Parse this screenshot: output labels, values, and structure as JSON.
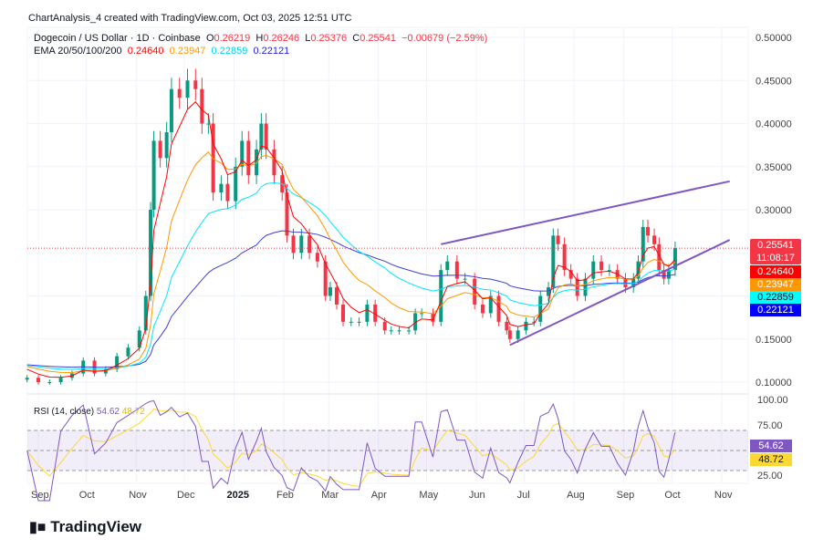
{
  "header": {
    "created": "ChartAnalysis_4 created with TradingView.com, Oct 03, 2025 12:51 UTC",
    "symbol": "Dogecoin / US Dollar · 1D · Coinbase",
    "o_label": "O",
    "o": "0.26219",
    "h_label": "H",
    "h": "0.26246",
    "l_label": "L",
    "l": "0.25376",
    "c_label": "C",
    "c": "0.25541",
    "change": "−0.00679 (−2.59%)",
    "ema_label": "EMA 20/50/100/200",
    "ema20": "0.24640",
    "ema50": "0.23947",
    "ema100": "0.22859",
    "ema200": "0.22121"
  },
  "price_labels": {
    "last": "0.25541",
    "countdown": "11:08:17",
    "ema20": "0.24640",
    "ema50": "0.23947",
    "ema100": "0.22859",
    "ema200": "0.22121"
  },
  "rsi": {
    "label": "RSI (14, close)",
    "value": "54.62",
    "ma": "48.72",
    "ticks": [
      "100.00",
      "75.00",
      "25.00"
    ]
  },
  "logo": "TradingView",
  "colors": {
    "up": "#089981",
    "down": "#f23645",
    "ema20": "#ff0000",
    "ema50": "#ff9800",
    "ema100": "#00e5ff",
    "ema200": "#2962ff",
    "trend": "#7e57c2",
    "rsi": "#7e57c2",
    "rsi_ma": "#fdd835"
  },
  "chart_data": {
    "type": "candlestick",
    "y_ticks": [
      "0.50000",
      "0.45000",
      "0.40000",
      "0.35000",
      "0.30000",
      "0.25000",
      "0.15000",
      "0.10000"
    ],
    "ylim": [
      0.1,
      0.5
    ],
    "x_ticks": [
      "Sep",
      "Oct",
      "Nov",
      "Dec",
      "2025",
      "Feb",
      "Mar",
      "Apr",
      "May",
      "Jun",
      "Jul",
      "Aug",
      "Sep",
      "Oct",
      "Nov"
    ],
    "x_tick_dates": [
      "2024-09-01",
      "2024-10-01",
      "2024-11-01",
      "2024-12-01",
      "2025-01-01",
      "2025-02-01",
      "2025-03-01",
      "2025-04-01",
      "2025-05-01",
      "2025-06-01",
      "2025-07-01",
      "2025-08-01",
      "2025-09-01",
      "2025-10-01",
      "2025-11-01"
    ],
    "closes": [
      [
        "2024-08-25",
        0.105
      ],
      [
        "2024-09-01",
        0.1
      ],
      [
        "2024-09-08",
        0.1
      ],
      [
        "2024-09-15",
        0.105
      ],
      [
        "2024-09-22",
        0.11
      ],
      [
        "2024-09-29",
        0.125
      ],
      [
        "2024-10-06",
        0.11
      ],
      [
        "2024-10-13",
        0.115
      ],
      [
        "2024-10-20",
        0.13
      ],
      [
        "2024-10-27",
        0.14
      ],
      [
        "2024-11-03",
        0.16
      ],
      [
        "2024-11-07",
        0.2
      ],
      [
        "2024-11-10",
        0.3
      ],
      [
        "2024-11-12",
        0.38
      ],
      [
        "2024-11-16",
        0.36
      ],
      [
        "2024-11-20",
        0.39
      ],
      [
        "2024-11-23",
        0.44
      ],
      [
        "2024-11-28",
        0.43
      ],
      [
        "2024-12-03",
        0.45
      ],
      [
        "2024-12-08",
        0.44
      ],
      [
        "2024-12-12",
        0.4
      ],
      [
        "2024-12-16",
        0.4
      ],
      [
        "2024-12-19",
        0.32
      ],
      [
        "2024-12-24",
        0.33
      ],
      [
        "2024-12-28",
        0.31
      ],
      [
        "2025-01-02",
        0.35
      ],
      [
        "2025-01-06",
        0.38
      ],
      [
        "2025-01-10",
        0.34
      ],
      [
        "2025-01-15",
        0.37
      ],
      [
        "2025-01-18",
        0.4
      ],
      [
        "2025-01-21",
        0.37
      ],
      [
        "2025-01-26",
        0.34
      ],
      [
        "2025-01-31",
        0.32
      ],
      [
        "2025-02-03",
        0.27
      ],
      [
        "2025-02-07",
        0.25
      ],
      [
        "2025-02-12",
        0.27
      ],
      [
        "2025-02-17",
        0.25
      ],
      [
        "2025-02-22",
        0.24
      ],
      [
        "2025-02-27",
        0.2
      ],
      [
        "2025-03-02",
        0.21
      ],
      [
        "2025-03-06",
        0.19
      ],
      [
        "2025-03-10",
        0.17
      ],
      [
        "2025-03-15",
        0.17
      ],
      [
        "2025-03-20",
        0.17
      ],
      [
        "2025-03-25",
        0.19
      ],
      [
        "2025-03-30",
        0.17
      ],
      [
        "2025-04-05",
        0.16
      ],
      [
        "2025-04-09",
        0.16
      ],
      [
        "2025-04-14",
        0.16
      ],
      [
        "2025-04-20",
        0.16
      ],
      [
        "2025-04-24",
        0.18
      ],
      [
        "2025-04-28",
        0.18
      ],
      [
        "2025-05-05",
        0.17
      ],
      [
        "2025-05-10",
        0.23
      ],
      [
        "2025-05-14",
        0.24
      ],
      [
        "2025-05-20",
        0.22
      ],
      [
        "2025-05-25",
        0.22
      ],
      [
        "2025-05-31",
        0.19
      ],
      [
        "2025-06-05",
        0.18
      ],
      [
        "2025-06-10",
        0.2
      ],
      [
        "2025-06-15",
        0.17
      ],
      [
        "2025-06-20",
        0.16
      ],
      [
        "2025-06-22",
        0.15
      ],
      [
        "2025-06-27",
        0.16
      ],
      [
        "2025-07-02",
        0.17
      ],
      [
        "2025-07-07",
        0.17
      ],
      [
        "2025-07-11",
        0.2
      ],
      [
        "2025-07-16",
        0.21
      ],
      [
        "2025-07-19",
        0.27
      ],
      [
        "2025-07-22",
        0.26
      ],
      [
        "2025-07-26",
        0.23
      ],
      [
        "2025-07-30",
        0.22
      ],
      [
        "2025-08-03",
        0.2
      ],
      [
        "2025-08-08",
        0.22
      ],
      [
        "2025-08-13",
        0.24
      ],
      [
        "2025-08-18",
        0.23
      ],
      [
        "2025-08-23",
        0.23
      ],
      [
        "2025-08-28",
        0.22
      ],
      [
        "2025-09-02",
        0.21
      ],
      [
        "2025-09-07",
        0.22
      ],
      [
        "2025-09-10",
        0.24
      ],
      [
        "2025-09-13",
        0.28
      ],
      [
        "2025-09-16",
        0.27
      ],
      [
        "2025-09-20",
        0.26
      ],
      [
        "2025-09-23",
        0.23
      ],
      [
        "2025-09-26",
        0.22
      ],
      [
        "2025-09-29",
        0.23
      ],
      [
        "2025-10-03",
        0.25541
      ]
    ],
    "trendlines": [
      {
        "from": [
          "2025-05-10",
          0.26
        ],
        "to": [
          "2025-11-06",
          0.333
        ]
      },
      {
        "from": [
          "2025-06-22",
          0.143
        ],
        "to": [
          "2025-11-06",
          0.265
        ]
      }
    ],
    "last_price": 0.25541,
    "rsi_levels": [
      70,
      50,
      30
    ]
  }
}
